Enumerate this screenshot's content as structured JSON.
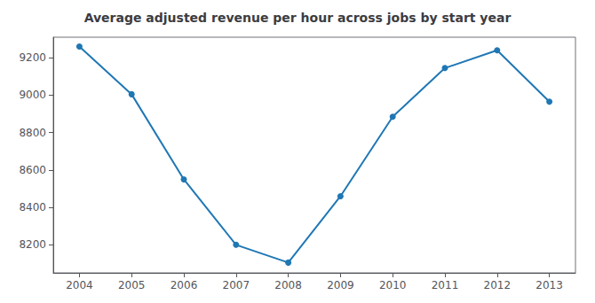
{
  "chart_data": {
    "type": "line",
    "title": "Average adjusted revenue per hour across jobs by start year",
    "x": [
      2004,
      2005,
      2006,
      2007,
      2008,
      2009,
      2010,
      2011,
      2012,
      2013
    ],
    "values": [
      9260,
      9005,
      8550,
      8200,
      8105,
      8460,
      8885,
      9145,
      9240,
      8965
    ],
    "color": "#1f77b4",
    "marker": "circle",
    "xlim": [
      2003.5,
      2013.5
    ],
    "xticks": [
      2004,
      2005,
      2006,
      2007,
      2008,
      2009,
      2010,
      2011,
      2012,
      2013
    ],
    "ylim": [
      8050,
      9310
    ],
    "yticks": [
      8200,
      8400,
      8600,
      8800,
      9000,
      9200
    ],
    "grid": false
  }
}
